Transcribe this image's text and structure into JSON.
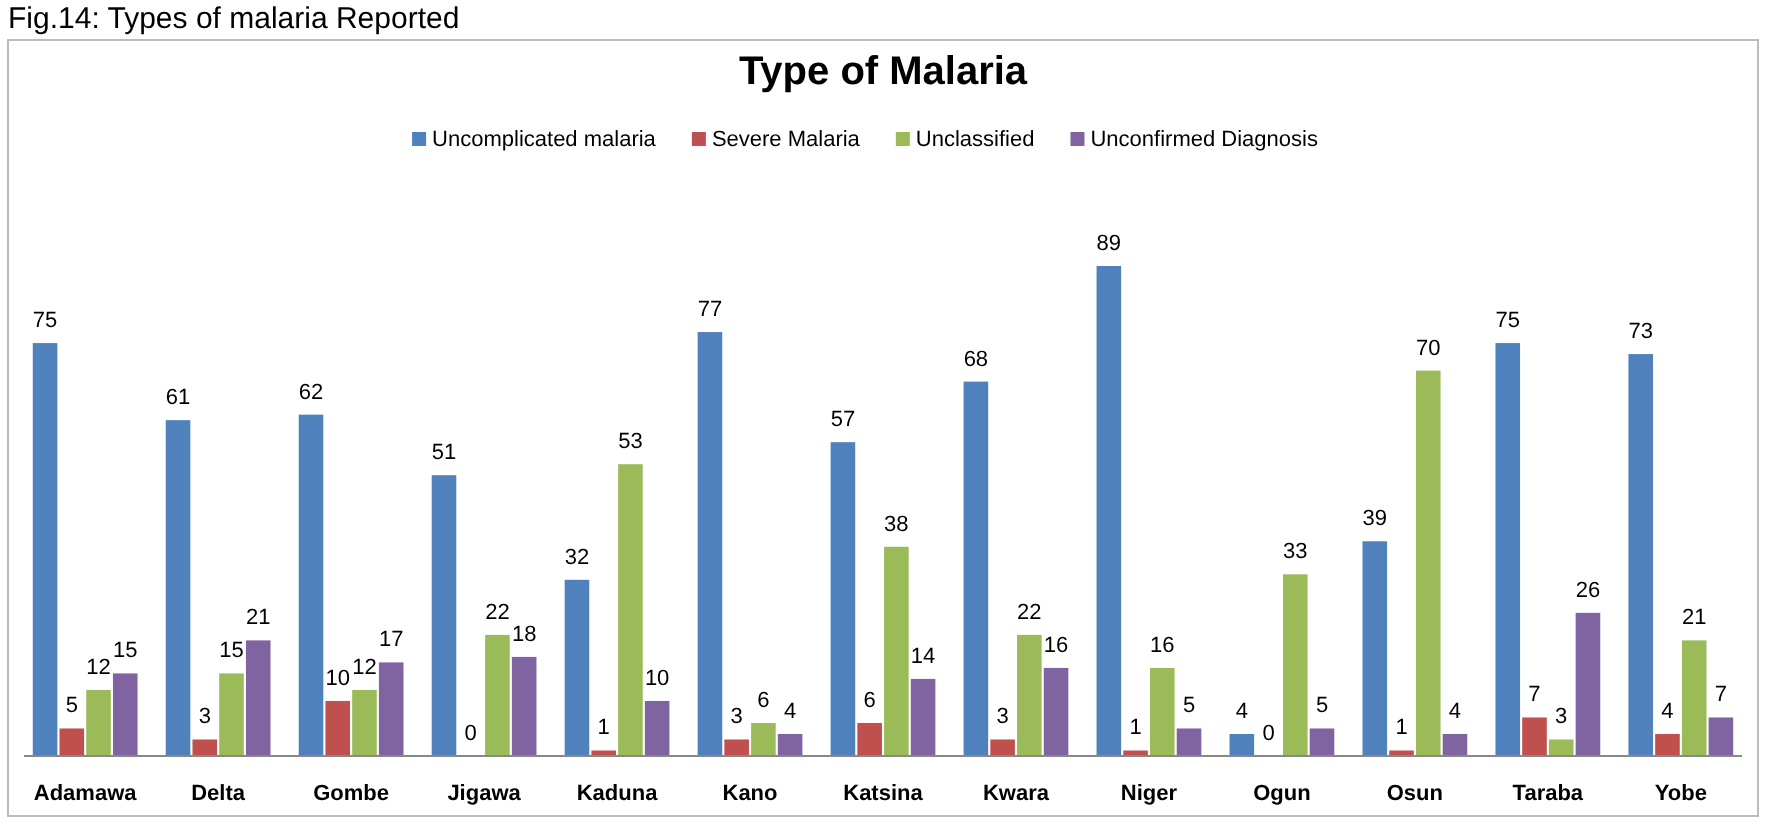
{
  "chart_data": {
    "type": "bar",
    "title": "Type of Malaria",
    "annotations": [
      "Fig.14: Types of malaria Reported"
    ],
    "categories": [
      "Adamawa",
      "Delta",
      "Gombe",
      "Jigawa",
      "Kaduna",
      "Kano",
      "Katsina",
      "Kwara",
      "Niger",
      "Ogun",
      "Osun",
      "Taraba",
      "Yobe"
    ],
    "series": [
      {
        "name": "Uncomplicated malaria",
        "color": "#4f81bd",
        "values": [
          75,
          61,
          62,
          51,
          32,
          77,
          57,
          68,
          89,
          4,
          39,
          75,
          73
        ]
      },
      {
        "name": "Severe Malaria",
        "color": "#c0504d",
        "values": [
          5,
          3,
          10,
          0,
          1,
          3,
          6,
          3,
          1,
          0,
          1,
          7,
          4
        ]
      },
      {
        "name": "Unclassified",
        "color": "#9bbb59",
        "values": [
          12,
          15,
          12,
          22,
          53,
          6,
          38,
          22,
          16,
          33,
          70,
          3,
          21
        ]
      },
      {
        "name": "Unconfirmed Diagnosis",
        "color": "#8064a2",
        "values": [
          15,
          21,
          17,
          18,
          10,
          4,
          14,
          16,
          5,
          5,
          4,
          26,
          7
        ]
      }
    ],
    "data_labels": true,
    "legend": "top"
  }
}
